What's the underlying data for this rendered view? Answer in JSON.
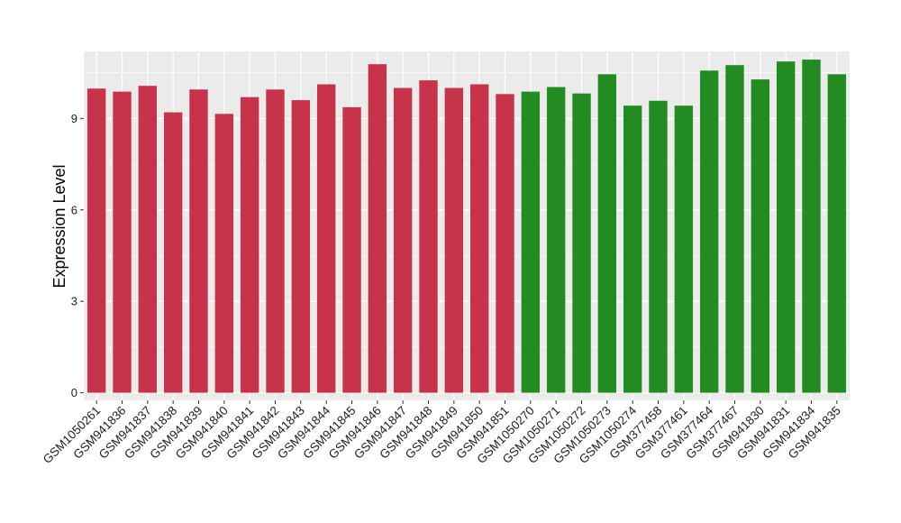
{
  "chart_data": {
    "type": "bar",
    "title": "",
    "xlabel": "",
    "ylabel": "Expression Level",
    "ylim": [
      -0.25,
      11.2
    ],
    "yticks": [
      0,
      3,
      6,
      9
    ],
    "grid": true,
    "legend": "none",
    "background": "#EBEBEB",
    "gridline_color": "#FFFFFF",
    "categories": [
      "GSM1050261",
      "GSM941836",
      "GSM941837",
      "GSM941838",
      "GSM941839",
      "GSM941840",
      "GSM941841",
      "GSM941842",
      "GSM941843",
      "GSM941844",
      "GSM941845",
      "GSM941846",
      "GSM941847",
      "GSM941848",
      "GSM941849",
      "GSM941850",
      "GSM941851",
      "GSM1050270",
      "GSM1050271",
      "GSM1050272",
      "GSM1050273",
      "GSM1050274",
      "GSM377458",
      "GSM377461",
      "GSM377464",
      "GSM377467",
      "GSM941830",
      "GSM941831",
      "GSM941834",
      "GSM941835"
    ],
    "values": [
      9.98,
      9.88,
      10.07,
      9.2,
      9.95,
      9.15,
      9.7,
      9.95,
      9.6,
      10.12,
      9.37,
      10.78,
      10.0,
      10.25,
      10.0,
      10.12,
      9.8,
      9.88,
      10.03,
      9.82,
      10.45,
      9.42,
      9.58,
      9.42,
      10.57,
      10.75,
      10.28,
      10.87,
      10.93,
      10.45
    ],
    "bar_colors": [
      "#C7334B",
      "#C7334B",
      "#C7334B",
      "#C7334B",
      "#C7334B",
      "#C7334B",
      "#C7334B",
      "#C7334B",
      "#C7334B",
      "#C7334B",
      "#C7334B",
      "#C7334B",
      "#C7334B",
      "#C7334B",
      "#C7334B",
      "#C7334B",
      "#C7334B",
      "#228B22",
      "#228B22",
      "#228B22",
      "#228B22",
      "#228B22",
      "#228B22",
      "#228B22",
      "#228B22",
      "#228B22",
      "#228B22",
      "#228B22",
      "#228B22",
      "#228B22"
    ]
  }
}
